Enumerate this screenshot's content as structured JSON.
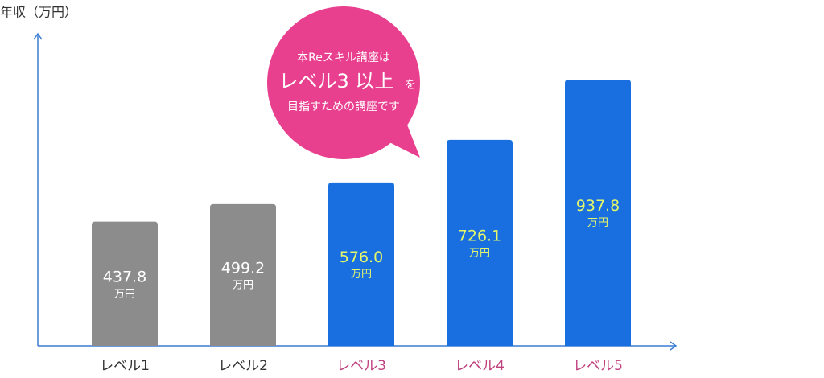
{
  "chart_data": {
    "type": "bar",
    "y_axis_title": "年収（万円）",
    "categories": [
      "レベル1",
      "レベル2",
      "レベル3",
      "レベル4",
      "レベル5"
    ],
    "values": [
      437.8,
      499.2,
      576.0,
      726.1,
      937.8
    ],
    "value_labels": [
      "437.8",
      "499.2",
      "576.0",
      "726.1",
      "937.8"
    ],
    "value_unit": "万円",
    "colors": [
      "#8c8c8c",
      "#8c8c8c",
      "#1a6fe0",
      "#1a6fe0",
      "#1a6fe0"
    ],
    "value_label_colors": [
      "#ffffff",
      "#ffffff",
      "#e4f76a",
      "#e4f76a",
      "#e4f76a"
    ],
    "category_colors": [
      "#333333",
      "#333333",
      "#c0407e",
      "#c0407e",
      "#c0407e"
    ],
    "ylim": [
      0,
      1100
    ],
    "axis_color": "#3a7bd5",
    "annotation": {
      "color": "#e8408f",
      "line1": "本Reスキル講座は",
      "line2": "レベル3 以上",
      "line2_suffix": "を",
      "line3": "目指すための講座です"
    }
  }
}
